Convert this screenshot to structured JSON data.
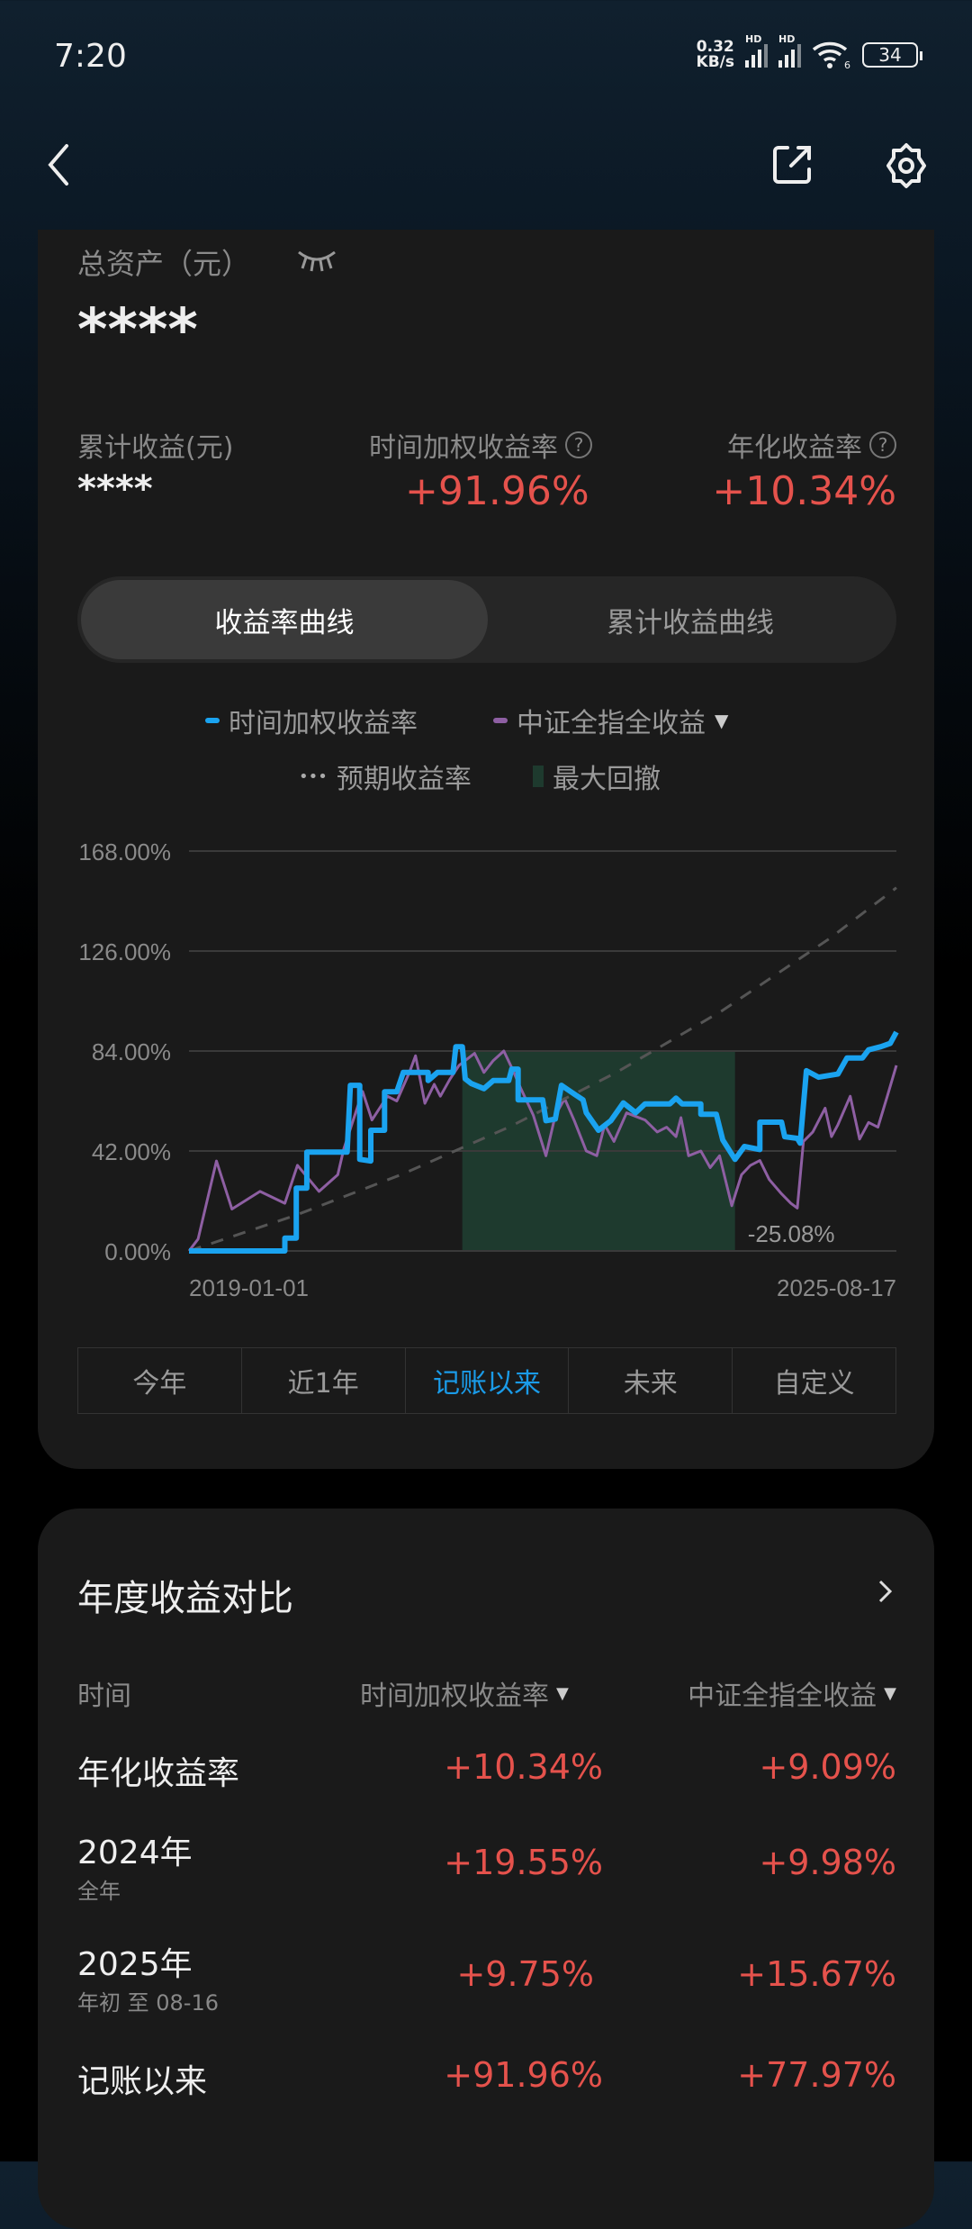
{
  "status_bar": {
    "time": "7:20",
    "net_speed_value": "0.32",
    "net_speed_unit": "KB/s",
    "signal_1": "HD",
    "signal_2": "HD",
    "wifi_badge": "6",
    "battery": "34"
  },
  "nav": {
    "back_icon": "chevron-left-icon",
    "share_icon": "share-icon",
    "settings_icon": "gear-icon"
  },
  "summary": {
    "total_assets_label": "总资产（元）",
    "total_assets_value": "****",
    "cumulative_label": "累计收益(元)",
    "cumulative_value": "****",
    "twr_label": "时间加权收益率",
    "twr_value": "+91.96%",
    "annual_label": "年化收益率",
    "annual_value": "+10.34%"
  },
  "chart_tabs": {
    "active": "收益率曲线",
    "inactive": "累计收益曲线"
  },
  "legend": {
    "twr": "时间加权收益率",
    "index": "中证全指全收益",
    "expected": "预期收益率",
    "drawdown": "最大回撤"
  },
  "colors": {
    "twr": "#1aa3f0",
    "index": "#8e5fa3",
    "expected": "#555555",
    "drawdown": "#1e3a2e",
    "positive": "#e5524c",
    "accent": "#1a9be8"
  },
  "chart_data": {
    "type": "line",
    "y_ticks": [
      "0.00%",
      "42.00%",
      "84.00%",
      "126.00%",
      "168.00%"
    ],
    "ylim": [
      0,
      168
    ],
    "x_ticks": [
      "2019-01-01",
      "2025-08-17"
    ],
    "xlim": [
      "2019-01-01",
      "2025-08-17"
    ],
    "grid": true,
    "series": [
      {
        "name": "时间加权收益率",
        "step": true,
        "points": [
          [
            "2019-01-01",
            0
          ],
          [
            "2019-11-25",
            0
          ],
          [
            "2019-11-25",
            5.4
          ],
          [
            "2020-01-03",
            5.4
          ],
          [
            "2020-01-03",
            26.4
          ],
          [
            "2020-02-08",
            26.4
          ],
          [
            "2020-02-08",
            41.5
          ],
          [
            "2020-06-25",
            41.5
          ],
          [
            "2020-07-06",
            69.6
          ],
          [
            "2020-08-07",
            69.6
          ],
          [
            "2020-08-07",
            38.5
          ],
          [
            "2020-09-14",
            37.8
          ],
          [
            "2020-09-14",
            50.7
          ],
          [
            "2020-10-31",
            50.7
          ],
          [
            "2020-10-31",
            66.9
          ],
          [
            "2020-12-12",
            66.9
          ],
          [
            "2021-01-03",
            75.0
          ],
          [
            "2021-03-29",
            75.0
          ],
          [
            "2021-03-29",
            71.6
          ],
          [
            "2021-04-30",
            75.0
          ],
          [
            "2021-06-22",
            75.0
          ],
          [
            "2021-07-02",
            85.8
          ],
          [
            "2021-07-24",
            85.8
          ],
          [
            "2021-08-03",
            72.3
          ],
          [
            "2021-08-24",
            70.3
          ],
          [
            "2021-10-06",
            68.2
          ],
          [
            "2021-11-07",
            71.6
          ],
          [
            "2021-12-30",
            71.6
          ],
          [
            "2022-01-09",
            76.4
          ],
          [
            "2022-01-31",
            76.4
          ],
          [
            "2022-01-31",
            63.5
          ],
          [
            "2022-04-25",
            63.5
          ],
          [
            "2022-05-06",
            54.7
          ],
          [
            "2022-06-07",
            55.4
          ],
          [
            "2022-06-28",
            69.6
          ],
          [
            "2022-07-30",
            66.9
          ],
          [
            "2022-09-10",
            63.5
          ],
          [
            "2022-09-21",
            58.1
          ],
          [
            "2022-11-02",
            50.7
          ],
          [
            "2022-12-14",
            54.7
          ],
          [
            "2023-01-26",
            62.2
          ],
          [
            "2023-03-09",
            58.1
          ],
          [
            "2023-04-10",
            61.8
          ],
          [
            "2023-07-04",
            61.8
          ],
          [
            "2023-07-25",
            64.2
          ],
          [
            "2023-08-15",
            61.8
          ],
          [
            "2023-10-18",
            61.8
          ],
          [
            "2023-10-18",
            57.4
          ],
          [
            "2023-12-10",
            57.4
          ],
          [
            "2024-01-01",
            46.6
          ],
          [
            "2024-02-12",
            38.5
          ],
          [
            "2024-03-15",
            43.9
          ],
          [
            "2024-05-07",
            42.6
          ],
          [
            "2024-05-07",
            54.1
          ],
          [
            "2024-07-20",
            54.1
          ],
          [
            "2024-07-31",
            48.0
          ],
          [
            "2024-09-12",
            47.3
          ],
          [
            "2024-09-22",
            45.3
          ],
          [
            "2024-10-13",
            75.7
          ],
          [
            "2024-11-24",
            73.0
          ],
          [
            "2025-01-29",
            74.3
          ],
          [
            "2025-03-01",
            81.1
          ],
          [
            "2025-04-23",
            81.1
          ],
          [
            "2025-05-14",
            84.5
          ],
          [
            "2025-06-25",
            85.8
          ],
          [
            "2025-07-27",
            87.2
          ],
          [
            "2025-08-17",
            91.96
          ]
        ]
      },
      {
        "name": "中证全指全收益",
        "points": [
          [
            "2019-01-01",
            0
          ],
          [
            "2019-02-01",
            5
          ],
          [
            "2019-04-05",
            37.8
          ],
          [
            "2019-05-28",
            17.6
          ],
          [
            "2019-09-01",
            25
          ],
          [
            "2019-11-25",
            20
          ],
          [
            "2020-01-07",
            36
          ],
          [
            "2020-03-21",
            25
          ],
          [
            "2020-05-24",
            32
          ],
          [
            "2020-06-14",
            43
          ],
          [
            "2020-07-16",
            55
          ],
          [
            "2020-08-17",
            67
          ],
          [
            "2020-09-18",
            55
          ],
          [
            "2020-11-10",
            65
          ],
          [
            "2020-12-12",
            63
          ],
          [
            "2021-01-24",
            75
          ],
          [
            "2021-02-14",
            82
          ],
          [
            "2021-03-18",
            62
          ],
          [
            "2021-04-19",
            70
          ],
          [
            "2021-05-10",
            65
          ],
          [
            "2021-06-11",
            72
          ],
          [
            "2021-07-13",
            78
          ],
          [
            "2021-09-04",
            83
          ],
          [
            "2021-10-06",
            75
          ],
          [
            "2021-11-07",
            80
          ],
          [
            "2021-12-13",
            84
          ],
          [
            "2022-01-09",
            77
          ],
          [
            "2022-02-10",
            68
          ],
          [
            "2022-03-24",
            57
          ],
          [
            "2022-05-06",
            40
          ],
          [
            "2022-06-07",
            57
          ],
          [
            "2022-07-09",
            64
          ],
          [
            "2022-08-10",
            55
          ],
          [
            "2022-09-21",
            42
          ],
          [
            "2022-10-27",
            40
          ],
          [
            "2022-11-23",
            53
          ],
          [
            "2022-12-25",
            46
          ],
          [
            "2023-02-06",
            58
          ],
          [
            "2023-04-10",
            55
          ],
          [
            "2023-05-22",
            50
          ],
          [
            "2023-06-23",
            52
          ],
          [
            "2023-07-25",
            48
          ],
          [
            "2023-08-11",
            56
          ],
          [
            "2023-09-06",
            40
          ],
          [
            "2023-10-18",
            42
          ],
          [
            "2023-11-19",
            35
          ],
          [
            "2023-12-21",
            40
          ],
          [
            "2024-02-01",
            19
          ],
          [
            "2024-03-05",
            32
          ],
          [
            "2024-04-05",
            36
          ],
          [
            "2024-05-07",
            38
          ],
          [
            "2024-06-08",
            30
          ],
          [
            "2024-07-20",
            24
          ],
          [
            "2024-08-21",
            20
          ],
          [
            "2024-09-12",
            18
          ],
          [
            "2024-10-03",
            46
          ],
          [
            "2024-11-04",
            50
          ],
          [
            "2024-12-16",
            60
          ],
          [
            "2025-01-07",
            48
          ],
          [
            "2025-01-29",
            53
          ],
          [
            "2025-03-12",
            65
          ],
          [
            "2025-04-13",
            47
          ],
          [
            "2025-05-14",
            54
          ],
          [
            "2025-06-15",
            52
          ],
          [
            "2025-07-17",
            65
          ],
          [
            "2025-08-17",
            77.97
          ]
        ]
      },
      {
        "name": "预期收益率",
        "dashed": true,
        "points": [
          [
            "2019-01-01",
            0
          ],
          [
            "2020-01-01",
            15
          ],
          [
            "2021-01-01",
            32.3
          ],
          [
            "2022-01-01",
            52.1
          ],
          [
            "2023-01-01",
            74.9
          ],
          [
            "2024-01-01",
            101.1
          ],
          [
            "2025-01-01",
            131.3
          ],
          [
            "2025-08-17",
            152.6
          ]
        ]
      }
    ],
    "drawdown": {
      "label": "最大回撤",
      "start": "2021-07-24",
      "end": "2024-02-12",
      "value_label": "-25.08%"
    }
  },
  "range_tabs": [
    "今年",
    "近1年",
    "记账以来",
    "未来",
    "自定义"
  ],
  "range_active": 2,
  "annual": {
    "title": "年度收益对比",
    "col_time": "时间",
    "col_twr": "时间加权收益率",
    "col_index": "中证全指全收益",
    "rows": [
      {
        "label": "年化收益率",
        "sub": "",
        "twr": "+10.34%",
        "index": "+9.09%"
      },
      {
        "label": "2024年",
        "sub": "全年",
        "twr": "+19.55%",
        "index": "+9.98%"
      },
      {
        "label": "2025年",
        "sub": "年初 至 08-16",
        "twr": "+9.75%",
        "index": "+15.67%"
      },
      {
        "label": "记账以来",
        "sub": "",
        "twr": "+91.96%",
        "index": "+77.97%"
      }
    ]
  }
}
